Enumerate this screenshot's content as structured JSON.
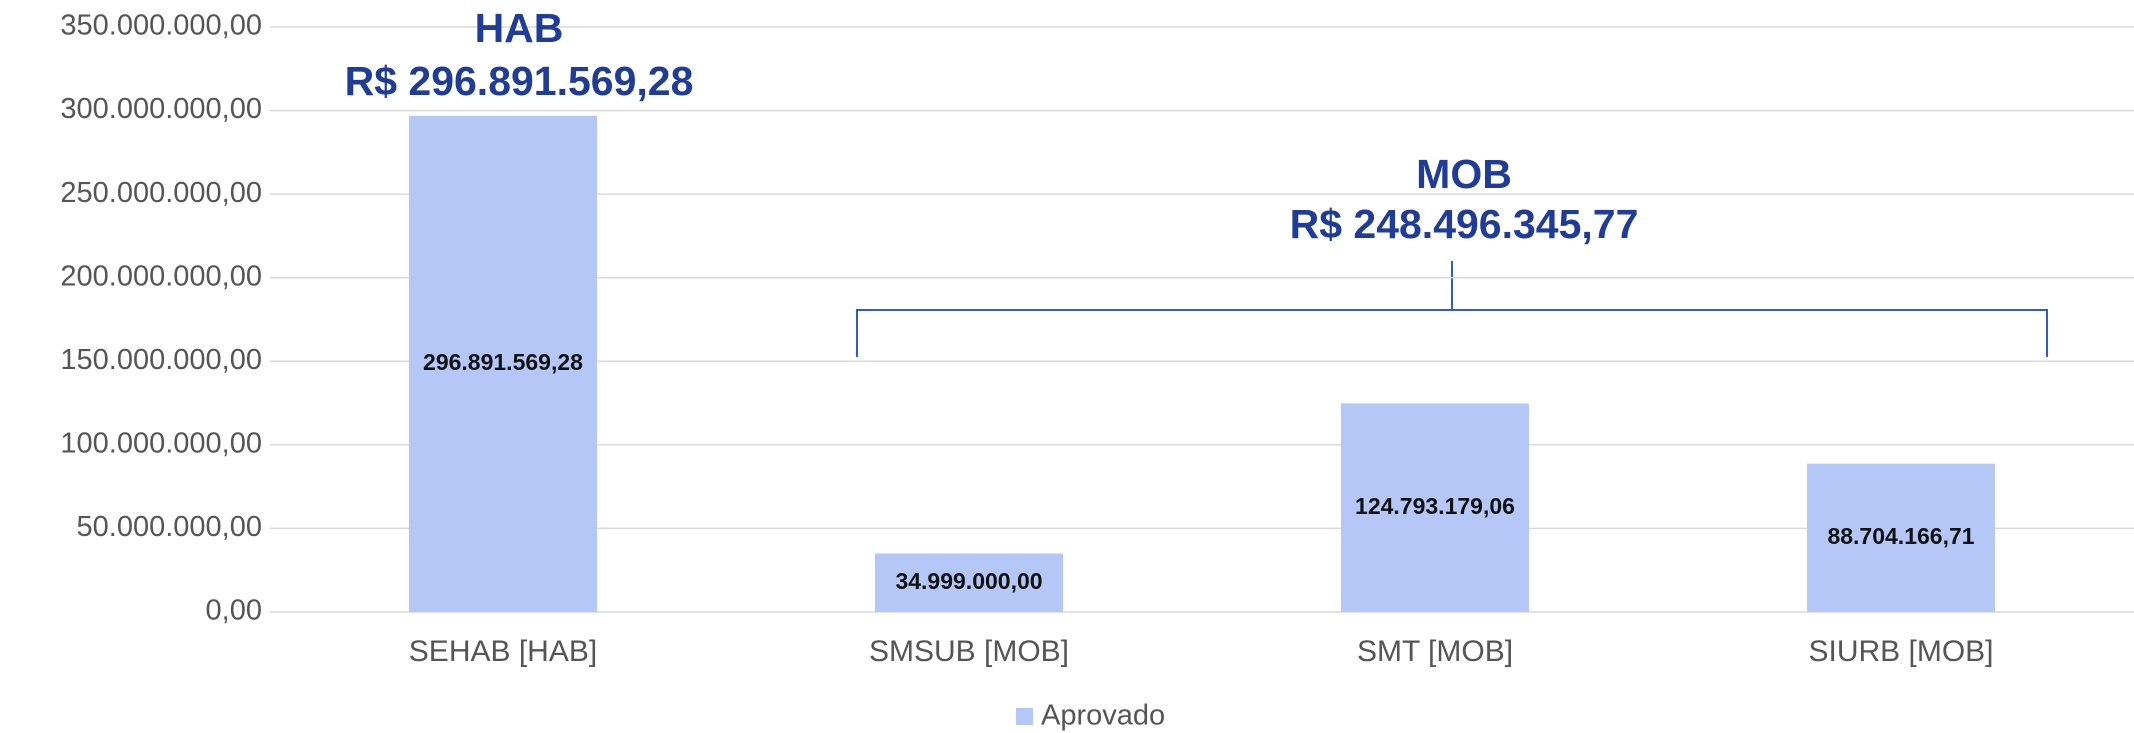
{
  "chart_data": {
    "type": "bar",
    "categories": [
      "SEHAB [HAB]",
      "SMSUB [MOB]",
      "SMT [MOB]",
      "SIURB [MOB]"
    ],
    "series": [
      {
        "name": "Aprovado",
        "color": "#b4c7f7",
        "values": [
          296891569.28,
          34999000,
          124793179.06,
          88704166.71
        ],
        "value_labels": [
          "296.891.569,28",
          "34.999.000,00",
          "124.793.179,06",
          "88.704.166,71"
        ]
      }
    ],
    "ylim": [
      0,
      350000000
    ],
    "yticks": [
      {
        "value": 0,
        "label": "0,00"
      },
      {
        "value": 50000000,
        "label": "50.000.000,00"
      },
      {
        "value": 100000000,
        "label": "100.000.000,00"
      },
      {
        "value": 150000000,
        "label": "150.000.000,00"
      },
      {
        "value": 200000000,
        "label": "200.000.000,00"
      },
      {
        "value": 250000000,
        "label": "250.000.000,00"
      },
      {
        "value": 300000000,
        "label": "300.000.000,00"
      },
      {
        "value": 350000000,
        "label": "350.000.000,00"
      }
    ],
    "grid": true,
    "legend": "bottom",
    "annotations": [
      "HAB",
      "R$ 296.891.569,28",
      "MOB",
      "R$ 248.496.345,77"
    ]
  }
}
